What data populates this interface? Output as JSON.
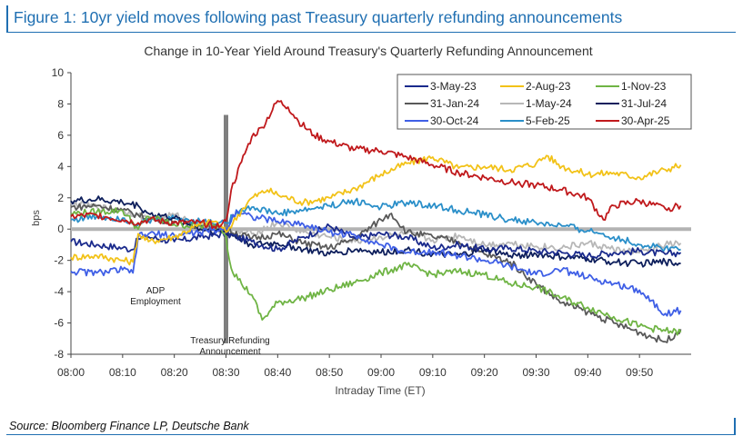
{
  "figure": {
    "title": "Figure 1: 10yr yield moves following past Treasury quarterly refunding announcements",
    "source": "Source: Bloomberg Finance LP, Deutsche Bank"
  },
  "chart_data": {
    "type": "line",
    "title": "Change in 10-Year Yield Around Treasury's Quarterly Refunding Announcement",
    "xlabel": "Intraday Time (ET)",
    "ylabel": "bps",
    "xlim": [
      0,
      120
    ],
    "ylim": [
      -8,
      10
    ],
    "x_ticks": [
      0,
      10,
      20,
      30,
      40,
      50,
      60,
      70,
      80,
      90,
      100,
      110
    ],
    "x_tick_labels": [
      "08:00",
      "08:10",
      "08:20",
      "08:30",
      "08:40",
      "08:50",
      "09:00",
      "09:10",
      "09:20",
      "09:30",
      "09:40",
      "09:50"
    ],
    "y_ticks": [
      -8,
      -6,
      -4,
      -2,
      0,
      2,
      4,
      6,
      8,
      10
    ],
    "y_tick_labels": [
      "-8",
      "-6",
      "-4",
      "-2",
      "0",
      "2",
      "4",
      "6",
      "8",
      "10"
    ],
    "legend_position": "top-right",
    "annotations": [
      {
        "label": "ADP\nEmployment",
        "x": 8,
        "y": -4.6
      },
      {
        "label": "Treasury Refunding\nAnnouncement",
        "x": 28,
        "y": -8.0
      }
    ],
    "reference_line": {
      "x": 30,
      "label": "Treasury Refunding Announcement"
    },
    "zero_line": true,
    "series": [
      {
        "name": "3-May-23",
        "color": "#1a2a8c",
        "x": [
          0,
          5,
          10,
          12,
          13,
          15,
          20,
          25,
          30,
          35,
          40,
          45,
          50,
          55,
          60,
          65,
          70,
          75,
          80,
          85,
          90,
          95,
          100,
          105,
          110,
          115,
          118
        ],
        "y": [
          -0.8,
          -1.0,
          -1.2,
          -1.3,
          -0.6,
          -0.5,
          -0.8,
          -0.5,
          -0.3,
          -0.8,
          -1.3,
          -0.5,
          0.2,
          -0.6,
          -0.3,
          -0.5,
          -1.2,
          -1.0,
          -1.3,
          -1.2,
          -1.4,
          -1.5,
          -1.7,
          -1.5,
          -1.4,
          -1.6,
          -1.5
        ]
      },
      {
        "name": "2-Aug-23",
        "color": "#f2c218",
        "x": [
          0,
          5,
          10,
          12,
          13,
          15,
          20,
          25,
          28,
          30,
          33,
          35,
          38,
          40,
          45,
          50,
          55,
          60,
          65,
          70,
          75,
          80,
          85,
          90,
          92,
          95,
          100,
          105,
          110,
          115,
          118
        ],
        "y": [
          -1.8,
          -1.7,
          -2.0,
          -2.1,
          -0.3,
          -0.8,
          -0.5,
          0.3,
          0.5,
          -0.2,
          1.2,
          2.0,
          2.5,
          2.2,
          1.7,
          2.0,
          2.6,
          3.5,
          4.2,
          4.6,
          3.9,
          4.0,
          3.8,
          4.2,
          4.7,
          4.0,
          3.5,
          3.6,
          3.3,
          3.8,
          4.1
        ]
      },
      {
        "name": "1-Nov-23",
        "color": "#6fb444",
        "x": [
          0,
          5,
          10,
          13,
          15,
          20,
          25,
          29,
          30,
          31,
          33,
          35,
          37,
          40,
          45,
          50,
          55,
          60,
          65,
          70,
          75,
          80,
          85,
          90,
          95,
          100,
          105,
          110,
          115,
          118
        ],
        "y": [
          1.0,
          1.1,
          1.2,
          0.0,
          0.8,
          0.3,
          0.2,
          0.2,
          -0.5,
          -2.5,
          -3.5,
          -4.2,
          -5.8,
          -4.7,
          -4.4,
          -3.9,
          -3.4,
          -2.8,
          -2.3,
          -2.9,
          -2.7,
          -2.9,
          -3.5,
          -3.7,
          -4.4,
          -5.0,
          -5.6,
          -6.2,
          -6.5,
          -6.6
        ]
      },
      {
        "name": "31-Jan-24",
        "color": "#595959",
        "x": [
          0,
          5,
          10,
          13,
          15,
          20,
          25,
          30,
          35,
          40,
          45,
          50,
          55,
          60,
          62,
          65,
          70,
          75,
          80,
          85,
          90,
          95,
          100,
          105,
          110,
          115,
          118
        ],
        "y": [
          1.4,
          1.5,
          1.2,
          0.9,
          0.7,
          0.5,
          0.2,
          0.0,
          -0.6,
          -0.3,
          -0.9,
          -1.2,
          -0.6,
          0.6,
          1.0,
          -0.2,
          -0.5,
          -0.8,
          -1.6,
          -2.1,
          -3.5,
          -4.7,
          -5.3,
          -6.0,
          -6.6,
          -7.2,
          -6.4
        ]
      },
      {
        "name": "1-May-24",
        "color": "#b7b7b7",
        "x": [
          0,
          5,
          10,
          13,
          15,
          20,
          25,
          30,
          35,
          40,
          45,
          50,
          55,
          60,
          65,
          70,
          75,
          80,
          85,
          90,
          95,
          100,
          105,
          110,
          115,
          118
        ],
        "y": [
          1.6,
          1.4,
          1.2,
          0.9,
          0.6,
          0.9,
          0.3,
          -0.1,
          -0.3,
          0.4,
          -0.2,
          -0.5,
          -0.8,
          -0.5,
          -0.3,
          -0.7,
          -0.4,
          -1.0,
          -0.9,
          -1.1,
          -1.2,
          -0.9,
          -1.3,
          -1.5,
          -1.0,
          -0.9
        ]
      },
      {
        "name": "31-Jul-24",
        "color": "#0e1f5c",
        "x": [
          0,
          5,
          10,
          13,
          15,
          20,
          25,
          30,
          35,
          40,
          45,
          50,
          55,
          60,
          65,
          70,
          75,
          80,
          85,
          90,
          95,
          100,
          105,
          110,
          115,
          118
        ],
        "y": [
          1.8,
          1.9,
          1.7,
          1.5,
          1.0,
          0.7,
          0.0,
          -0.2,
          -1.0,
          -0.9,
          -1.3,
          -1.6,
          -1.3,
          -1.5,
          -1.3,
          -1.6,
          -1.7,
          -1.3,
          -1.7,
          -1.6,
          -1.8,
          -1.9,
          -2.1,
          -2.2,
          -2.1,
          -2.2
        ]
      },
      {
        "name": "30-Oct-24",
        "color": "#3f5fe6",
        "x": [
          0,
          5,
          10,
          12,
          13,
          15,
          20,
          25,
          30,
          32,
          35,
          40,
          45,
          50,
          55,
          60,
          65,
          70,
          75,
          80,
          85,
          90,
          95,
          100,
          105,
          110,
          115,
          118
        ],
        "y": [
          -2.7,
          -2.8,
          -2.6,
          -2.8,
          -0.5,
          -0.3,
          -0.4,
          -0.2,
          0.0,
          1.2,
          0.8,
          0.5,
          0.3,
          -0.2,
          -0.4,
          -1.0,
          -1.5,
          -1.4,
          -1.7,
          -2.0,
          -2.4,
          -2.9,
          -2.6,
          -3.1,
          -3.5,
          -3.9,
          -5.4,
          -5.2
        ]
      },
      {
        "name": "5-Feb-25",
        "color": "#2a8fc9",
        "x": [
          0,
          5,
          10,
          13,
          15,
          20,
          25,
          30,
          33,
          35,
          40,
          45,
          50,
          55,
          60,
          65,
          70,
          75,
          80,
          85,
          90,
          95,
          100,
          105,
          110,
          115,
          118
        ],
        "y": [
          0.6,
          0.8,
          0.7,
          0.3,
          0.5,
          0.7,
          0.5,
          0.4,
          1.3,
          1.4,
          1.0,
          1.2,
          1.5,
          1.8,
          1.4,
          1.7,
          1.5,
          1.2,
          0.9,
          0.6,
          0.4,
          0.2,
          -0.1,
          -0.5,
          -1.0,
          -1.2,
          -1.3
        ]
      },
      {
        "name": "30-Apr-25",
        "color": "#c0191c",
        "x": [
          0,
          5,
          10,
          13,
          15,
          20,
          25,
          29,
          30,
          31,
          33,
          35,
          37,
          40,
          42,
          44,
          47,
          50,
          55,
          60,
          65,
          70,
          75,
          80,
          85,
          90,
          95,
          100,
          103,
          105,
          110,
          115,
          118
        ],
        "y": [
          0.8,
          0.9,
          0.6,
          0.4,
          0.6,
          0.4,
          0.4,
          0.2,
          0.5,
          2.5,
          4.3,
          5.9,
          6.5,
          8.2,
          7.8,
          6.9,
          6.0,
          5.6,
          5.1,
          5.0,
          4.6,
          4.1,
          3.6,
          3.3,
          3.0,
          2.8,
          2.5,
          2.0,
          0.6,
          1.5,
          1.8,
          1.3,
          1.5
        ]
      }
    ]
  }
}
